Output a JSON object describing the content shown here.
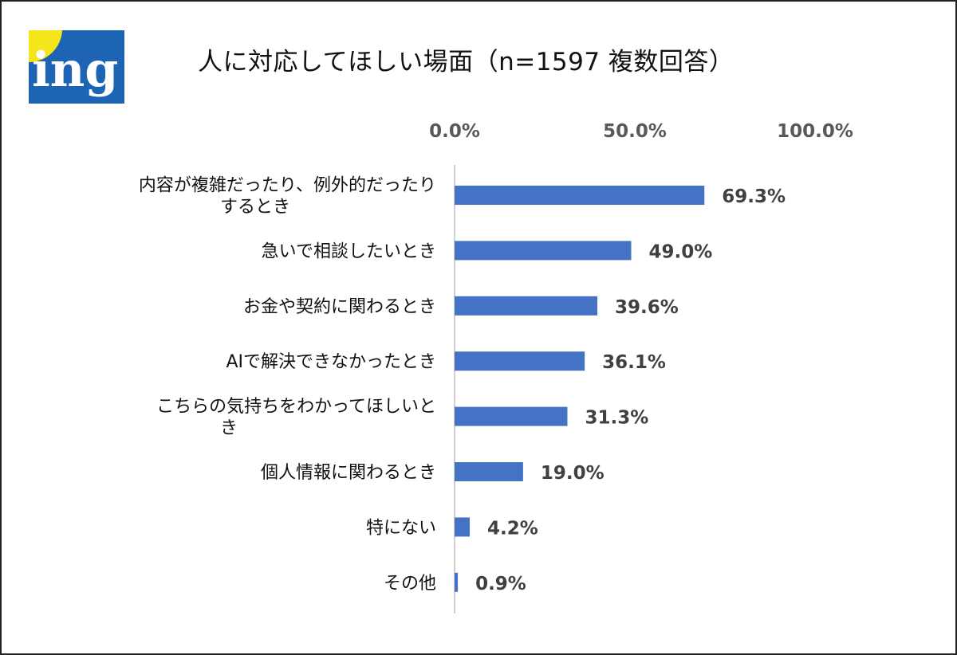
{
  "logo": {
    "text": "ing",
    "colors": {
      "yellow": "#f5e51b",
      "blue": "#1e64b4",
      "white": "#ffffff"
    }
  },
  "chart_data": {
    "type": "bar",
    "orientation": "horizontal",
    "title": "人に対応してほしい場面（n=1597 複数回答）",
    "categories": [
      [
        "内容が複雑だったり、例外的だったり",
        "するとき"
      ],
      [
        "急いで相談したいとき"
      ],
      [
        "お金や契約に関わるとき"
      ],
      [
        "AIで解決できなかったとき"
      ],
      [
        "こちらの気持ちをわかってほしいと",
        "き"
      ],
      [
        "個人情報に関わるとき"
      ],
      [
        "特にない"
      ],
      [
        "その他"
      ]
    ],
    "values": [
      69.3,
      49.0,
      39.6,
      36.1,
      31.3,
      19.0,
      4.2,
      0.9
    ],
    "value_labels": [
      "69.3%",
      "49.0%",
      "39.6%",
      "36.1%",
      "31.3%",
      "19.0%",
      "4.2%",
      "0.9%"
    ],
    "x_ticks": [
      0,
      50,
      100
    ],
    "x_tick_labels": [
      "0.0%",
      "50.0%",
      "100.0%"
    ],
    "xlim": [
      0,
      100
    ],
    "axis_position": "top",
    "grid": false,
    "legend": "none",
    "bar_color": "#4472c4",
    "axis_color": "#d0d0d0"
  }
}
